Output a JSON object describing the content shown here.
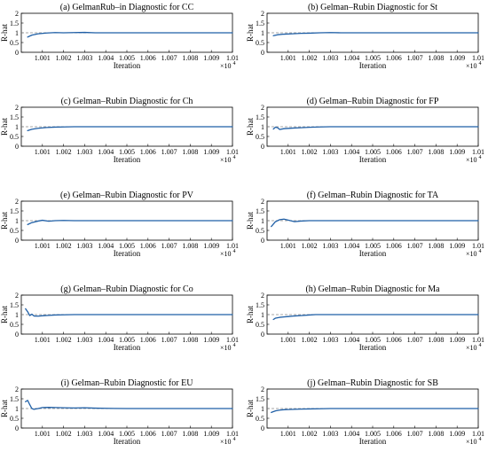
{
  "chart_data": [
    {
      "type": "line",
      "title": "(a) GelmanRub–in Diagnostic for CC",
      "xlabel": "Iteration",
      "ylabel": "R-hat",
      "x_exponent_label": "×10",
      "x_exponent_power": "4",
      "xlim": [
        1.0,
        1.01
      ],
      "ylim": [
        0,
        2
      ],
      "xticks": [
        "1.001",
        "1.002",
        "1.003",
        "1.004",
        "1.005",
        "1.006",
        "1.007",
        "1.008",
        "1.009",
        "1.01"
      ],
      "yticks": [
        "0",
        "0.5",
        "1",
        "1.5",
        "2"
      ],
      "reference_y": 1,
      "series": [
        {
          "x": [
            1.0003,
            1.0005,
            1.0008,
            1.0012,
            1.0016,
            1.002,
            1.0025,
            1.003,
            1.0035,
            1.004,
            1.005,
            1.006,
            1.007,
            1.008,
            1.009,
            1.01
          ],
          "y": [
            0.78,
            0.88,
            0.95,
            0.99,
            1.01,
            1.0,
            1.01,
            1.02,
            1.0,
            1.0,
            1.0,
            1.0,
            1.0,
            1.0,
            1.0,
            1.0
          ]
        }
      ]
    },
    {
      "type": "line",
      "title": "(b) Gelman–Rubin Diagnostic for St",
      "xlabel": "Iteration",
      "ylabel": "R-hat",
      "x_exponent_label": "×10",
      "x_exponent_power": "4",
      "xlim": [
        1.0,
        1.01
      ],
      "ylim": [
        0,
        2
      ],
      "xticks": [
        "1.001",
        "1.002",
        "1.003",
        "1.004",
        "1.005",
        "1.006",
        "1.007",
        "1.008",
        "1.009",
        "1.01"
      ],
      "yticks": [
        "0",
        "0.5",
        "1",
        "1.5",
        "2"
      ],
      "reference_y": 1,
      "series": [
        {
          "x": [
            1.0003,
            1.0005,
            1.0008,
            1.0012,
            1.0016,
            1.002,
            1.0025,
            1.003,
            1.0035,
            1.004,
            1.005,
            1.006,
            1.007,
            1.008,
            1.009,
            1.01
          ],
          "y": [
            0.85,
            0.9,
            0.93,
            0.95,
            0.97,
            0.98,
            1.0,
            1.01,
            1.0,
            1.0,
            1.0,
            1.0,
            1.0,
            1.0,
            1.0,
            1.0
          ]
        }
      ]
    },
    {
      "type": "line",
      "title": "(c) Gelman–Rubin Diagnostic for Ch",
      "xlabel": "Iteration",
      "ylabel": "R-hat",
      "x_exponent_label": "×10",
      "x_exponent_power": "4",
      "xlim": [
        1.0,
        1.01
      ],
      "ylim": [
        0,
        2
      ],
      "xticks": [
        "1.001",
        "1.002",
        "1.003",
        "1.004",
        "1.005",
        "1.006",
        "1.007",
        "1.008",
        "1.009",
        "1.01"
      ],
      "yticks": [
        "0",
        "0.5",
        "1",
        "1.5",
        "2"
      ],
      "reference_y": 1,
      "series": [
        {
          "x": [
            1.0003,
            1.0005,
            1.0008,
            1.0012,
            1.0016,
            1.002,
            1.0025,
            1.003,
            1.0035,
            1.004,
            1.005,
            1.006,
            1.007,
            1.008,
            1.009,
            1.01
          ],
          "y": [
            0.8,
            0.87,
            0.92,
            0.96,
            0.98,
            0.99,
            1.0,
            1.0,
            1.0,
            1.0,
            1.0,
            1.0,
            1.0,
            1.0,
            1.0,
            1.0
          ]
        }
      ]
    },
    {
      "type": "line",
      "title": "(d) Gelman–Rubin Diagnostic for FP",
      "xlabel": "Iteration",
      "ylabel": "R-hat",
      "x_exponent_label": "×10",
      "x_exponent_power": "4",
      "xlim": [
        1.0,
        1.01
      ],
      "ylim": [
        0,
        2
      ],
      "xticks": [
        "1.001",
        "1.002",
        "1.003",
        "1.004",
        "1.005",
        "1.006",
        "1.007",
        "1.008",
        "1.009",
        "1.01"
      ],
      "yticks": [
        "0",
        "0.5",
        "1",
        "1.5",
        "2"
      ],
      "reference_y": 1,
      "series": [
        {
          "x": [
            1.0003,
            1.0004,
            1.0005,
            1.0006,
            1.0008,
            1.0012,
            1.0016,
            1.002,
            1.0025,
            1.003,
            1.004,
            1.005,
            1.006,
            1.007,
            1.008,
            1.009,
            1.01
          ],
          "y": [
            0.88,
            0.98,
            0.95,
            0.86,
            0.9,
            0.93,
            0.95,
            0.97,
            0.99,
            1.0,
            1.0,
            1.0,
            1.0,
            1.0,
            1.0,
            1.0,
            1.0
          ]
        }
      ]
    },
    {
      "type": "line",
      "title": "(e) Gelman–Rubin Diagnostic for PV",
      "xlabel": "Iteration",
      "ylabel": "R-hat",
      "x_exponent_label": "×10",
      "x_exponent_power": "4",
      "xlim": [
        1.0,
        1.01
      ],
      "ylim": [
        0,
        2
      ],
      "xticks": [
        "1.001",
        "1.002",
        "1.003",
        "1.004",
        "1.005",
        "1.006",
        "1.007",
        "1.008",
        "1.009",
        "1.01"
      ],
      "yticks": [
        "0",
        "0.5",
        "1",
        "1.5",
        "2"
      ],
      "reference_y": 1,
      "series": [
        {
          "x": [
            1.0003,
            1.0005,
            1.0008,
            1.001,
            1.0013,
            1.0016,
            1.002,
            1.0025,
            1.003,
            1.004,
            1.005,
            1.006,
            1.007,
            1.008,
            1.009,
            1.01
          ],
          "y": [
            0.8,
            0.9,
            0.98,
            1.02,
            0.97,
            1.0,
            1.01,
            1.0,
            1.0,
            1.0,
            1.0,
            1.0,
            1.0,
            1.0,
            1.0,
            1.0
          ]
        }
      ]
    },
    {
      "type": "line",
      "title": "(f) Gelman–Rubin Diagnostic for TA",
      "xlabel": "Iteration",
      "ylabel": "R-hat",
      "x_exponent_label": "×10",
      "x_exponent_power": "4",
      "xlim": [
        1.0,
        1.01
      ],
      "ylim": [
        0,
        2
      ],
      "xticks": [
        "1.001",
        "1.002",
        "1.003",
        "1.004",
        "1.005",
        "1.006",
        "1.007",
        "1.008",
        "1.009",
        "1.01"
      ],
      "yticks": [
        "0",
        "0.5",
        "1",
        "1.5",
        "2"
      ],
      "reference_y": 1,
      "series": [
        {
          "x": [
            1.0002,
            1.0004,
            1.0006,
            1.0008,
            1.001,
            1.0013,
            1.0016,
            1.002,
            1.0025,
            1.003,
            1.004,
            1.005,
            1.006,
            1.007,
            1.008,
            1.009,
            1.01
          ],
          "y": [
            0.7,
            0.95,
            1.05,
            1.08,
            1.03,
            0.95,
            0.98,
            1.0,
            1.0,
            1.0,
            1.0,
            1.0,
            1.0,
            1.0,
            1.0,
            1.0,
            1.0
          ]
        }
      ]
    },
    {
      "type": "line",
      "title": "(g) Gelman–Rubin Diagnostic for Co",
      "xlabel": "Iteration",
      "ylabel": "R-hat",
      "x_exponent_label": "×10",
      "x_exponent_power": "4",
      "xlim": [
        1.0,
        1.01
      ],
      "ylim": [
        0,
        2
      ],
      "xticks": [
        "1.001",
        "1.002",
        "1.003",
        "1.004",
        "1.005",
        "1.006",
        "1.007",
        "1.008",
        "1.009",
        "1.01"
      ],
      "yticks": [
        "0",
        "0.5",
        "1",
        "1.5",
        "2"
      ],
      "reference_y": 1,
      "series": [
        {
          "x": [
            1.0002,
            1.0003,
            1.0004,
            1.0005,
            1.0006,
            1.0008,
            1.001,
            1.0013,
            1.0016,
            1.002,
            1.0025,
            1.003,
            1.004,
            1.005,
            1.006,
            1.007,
            1.008,
            1.009,
            1.01
          ],
          "y": [
            1.3,
            1.15,
            0.95,
            1.02,
            0.93,
            0.92,
            0.94,
            0.96,
            0.98,
            0.99,
            1.0,
            1.0,
            1.0,
            1.0,
            1.0,
            1.0,
            1.0,
            1.0,
            1.0
          ]
        }
      ]
    },
    {
      "type": "line",
      "title": "(h) Gelman–Rubin Diagnostic for Ma",
      "xlabel": "Iteration",
      "ylabel": "R-hat",
      "x_exponent_label": "×10",
      "x_exponent_power": "4",
      "xlim": [
        1.0,
        1.01
      ],
      "ylim": [
        0,
        2
      ],
      "xticks": [
        "1.001",
        "1.002",
        "1.003",
        "1.004",
        "1.005",
        "1.006",
        "1.007",
        "1.008",
        "1.009",
        "1.01"
      ],
      "yticks": [
        "0",
        "0.5",
        "1",
        "1.5",
        "2"
      ],
      "reference_y": 1,
      "series": [
        {
          "x": [
            1.0003,
            1.0004,
            1.0006,
            1.0008,
            1.001,
            1.0013,
            1.0016,
            1.002,
            1.0023,
            1.0026,
            1.003,
            1.004,
            1.005,
            1.006,
            1.007,
            1.008,
            1.009,
            1.01
          ],
          "y": [
            0.75,
            0.82,
            0.86,
            0.88,
            0.9,
            0.93,
            0.95,
            0.98,
            1.0,
            1.0,
            1.0,
            1.0,
            1.0,
            1.0,
            1.0,
            1.0,
            1.0,
            1.0
          ]
        }
      ]
    },
    {
      "type": "line",
      "title": "(i) Gelman–Rubin Diagnostic for EU",
      "xlabel": "Iteration",
      "ylabel": "R-hat",
      "x_exponent_label": "×10",
      "x_exponent_power": "4",
      "xlim": [
        1.0,
        1.01
      ],
      "ylim": [
        0,
        2
      ],
      "xticks": [
        "1.001",
        "1.002",
        "1.003",
        "1.004",
        "1.005",
        "1.006",
        "1.007",
        "1.008",
        "1.009",
        "1.01"
      ],
      "yticks": [
        "0",
        "0.5",
        "1",
        "1.5",
        "2"
      ],
      "reference_y": 1,
      "series": [
        {
          "x": [
            1.0002,
            1.0003,
            1.0004,
            1.0005,
            1.0006,
            1.0008,
            1.001,
            1.0013,
            1.0016,
            1.002,
            1.0025,
            1.003,
            1.0035,
            1.004,
            1.005,
            1.006,
            1.007,
            1.008,
            1.009,
            1.01
          ],
          "y": [
            1.35,
            1.42,
            1.2,
            1.0,
            0.96,
            1.0,
            1.05,
            1.06,
            1.05,
            1.04,
            1.03,
            1.04,
            1.02,
            1.01,
            1.0,
            1.0,
            1.0,
            1.0,
            1.0,
            1.0
          ]
        }
      ]
    },
    {
      "type": "line",
      "title": "(j) Gelman–Rubin Diagnostic for SB",
      "xlabel": "Iteration",
      "ylabel": "R-hat",
      "x_exponent_label": "×10",
      "x_exponent_power": "4",
      "xlim": [
        1.0,
        1.01
      ],
      "ylim": [
        0,
        2
      ],
      "xticks": [
        "1.001",
        "1.002",
        "1.003",
        "1.004",
        "1.005",
        "1.006",
        "1.007",
        "1.008",
        "1.009",
        "1.01"
      ],
      "yticks": [
        "0",
        "0.5",
        "1",
        "1.5",
        "2"
      ],
      "reference_y": 1,
      "series": [
        {
          "x": [
            1.0002,
            1.0004,
            1.0006,
            1.0008,
            1.001,
            1.0013,
            1.0016,
            1.002,
            1.0025,
            1.003,
            1.004,
            1.005,
            1.006,
            1.007,
            1.008,
            1.009,
            1.01
          ],
          "y": [
            0.8,
            0.88,
            0.92,
            0.94,
            0.95,
            0.96,
            0.97,
            0.98,
            0.99,
            1.0,
            1.0,
            1.0,
            1.0,
            1.0,
            1.0,
            1.0,
            1.0
          ]
        }
      ]
    }
  ],
  "colors": {
    "line": "#1f5fa6",
    "reference": "#8a8a8a",
    "axis": "#000000"
  }
}
